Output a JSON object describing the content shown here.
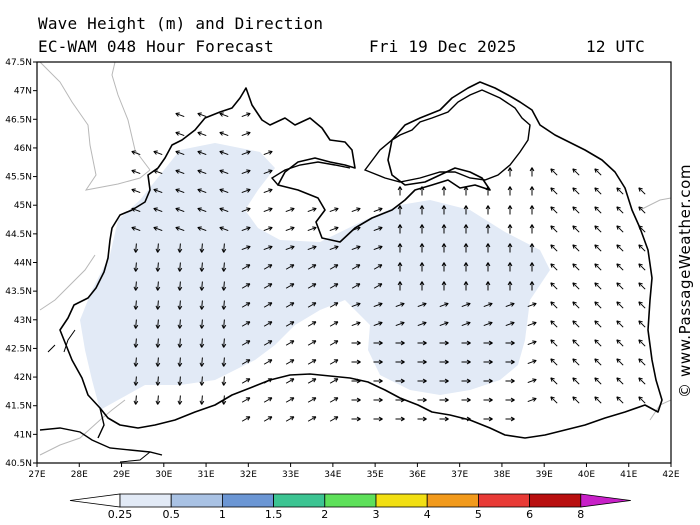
{
  "header": {
    "title": "Wave Height (m) and Direction",
    "model_line": "EC-WAM 048 Hour Forecast",
    "date": "Fri 19 Dec 2025",
    "time": "12 UTC"
  },
  "credit": "© www.PassageWeather.com",
  "axes": {
    "lon_labels": [
      "27E",
      "28E",
      "29E",
      "30E",
      "31E",
      "32E",
      "33E",
      "34E",
      "35E",
      "36E",
      "37E",
      "38E",
      "39E",
      "40E",
      "41E",
      "42E"
    ],
    "lat_labels": [
      "47.5N",
      "47N",
      "46.5N",
      "46N",
      "45.5N",
      "45N",
      "44.5N",
      "44N",
      "43.5N",
      "43N",
      "42.5N",
      "42N",
      "41.5N",
      "41N",
      "40.5N"
    ]
  },
  "colorbar": {
    "colors": [
      "#e2eaf6",
      "#a9c2e4",
      "#6b96d4",
      "#3cc492",
      "#5ee05a",
      "#f2df12",
      "#f29a1c",
      "#e83a36",
      "#b80f0f",
      "#c820c8"
    ],
    "labels": [
      "0.25",
      "0.5",
      "1",
      "1.5",
      "2",
      "3",
      "4",
      "5",
      "6",
      "8"
    ]
  },
  "legend_colors": {
    "light_zone": "#e2eaf6",
    "land": "#ffffff",
    "coast": "#000000"
  }
}
